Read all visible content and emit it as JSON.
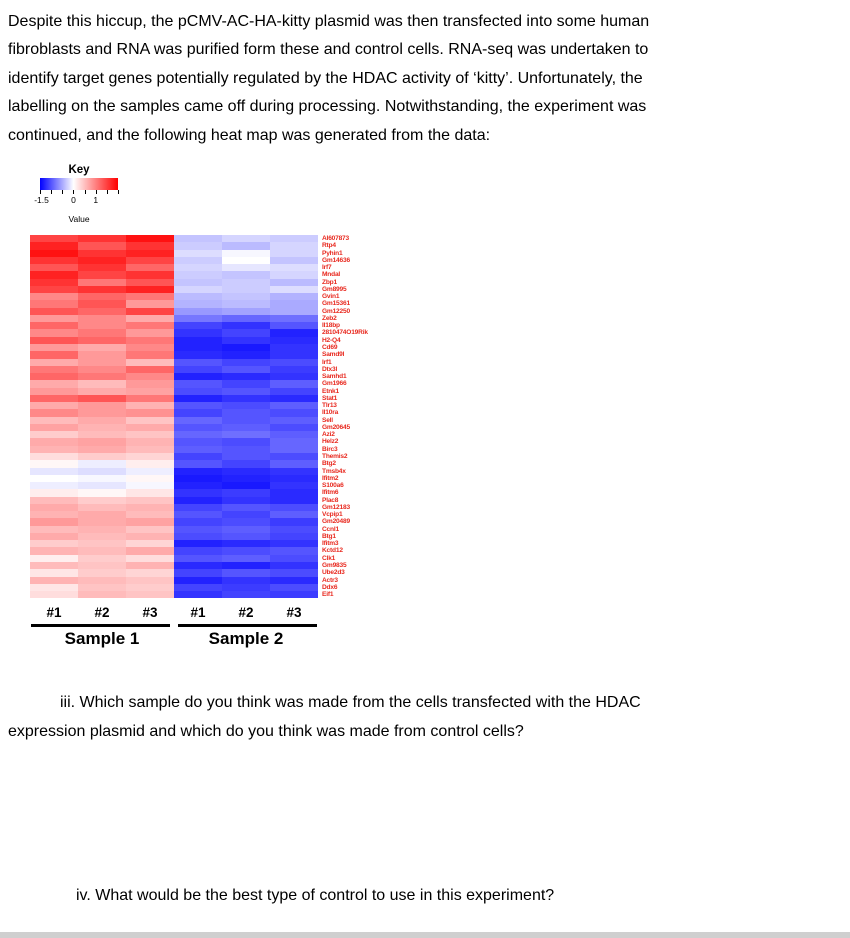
{
  "intro": {
    "lines": [
      "Despite this hiccup, the pCMV-AC-HA-kitty plasmid was then transfected into some human",
      "fibroblasts and RNA was purified form these and control cells. RNA-seq was undertaken to",
      "identify target genes potentially regulated by the HDAC activity of ‘kitty’. Unfortunately, the",
      "labelling on the samples came off during processing. Notwithstanding, the experiment was",
      "continued, and the following heat map was generated from the data:"
    ]
  },
  "key": {
    "title": "Key",
    "tick_labels": [
      "-1.5",
      "0",
      "1"
    ],
    "axis_label": "Value"
  },
  "chart_data": {
    "type": "heatmap",
    "title": "",
    "columns": [
      "Sample 1 #1",
      "Sample 1 #2",
      "Sample 1 #3",
      "Sample 2 #1",
      "Sample 2 #2",
      "Sample 2 #3"
    ],
    "genes": [
      "AI607873",
      "Rtp4",
      "Pyhin1",
      "Gm14636",
      "Irf7",
      "Mndal",
      "Zbp1",
      "Gm8995",
      "Gvin1",
      "Gm15361",
      "Gm12250",
      "Zeb2",
      "Il18bp",
      "2810474O19Rik",
      "H2-Q4",
      "Cd69",
      "Samd9l",
      "Irf1",
      "Dtx3l",
      "Samhd1",
      "Gm1966",
      "Etnk1",
      "Stat1",
      "Tlr13",
      "Il10ra",
      "Sell",
      "Gm20645",
      "Azi2",
      "Helz2",
      "Birc3",
      "Themis2",
      "Btg2",
      "Tmsb4x",
      "Ifitm2",
      "S100a6",
      "Ifitm6",
      "Plac8",
      "Gm12183",
      "Vcpip1",
      "Gm20489",
      "Ccnl1",
      "Btg1",
      "Ifitm3",
      "Kctd12",
      "Clk1",
      "Gm9835",
      "Ube2d3",
      "Actr3",
      "Ddx6",
      "Eif1"
    ],
    "values": [
      [
        1.1,
        1.2,
        1.4,
        -0.35,
        -0.25,
        -0.3
      ],
      [
        1.3,
        1.0,
        1.2,
        -0.3,
        -0.4,
        -0.25
      ],
      [
        1.4,
        1.2,
        1.3,
        -0.2,
        -0.05,
        -0.25
      ],
      [
        1.2,
        1.3,
        1.1,
        -0.3,
        0.0,
        -0.35
      ],
      [
        1.0,
        1.2,
        0.9,
        -0.25,
        -0.15,
        -0.2
      ],
      [
        1.3,
        1.1,
        1.2,
        -0.3,
        -0.35,
        -0.25
      ],
      [
        1.2,
        0.8,
        1.0,
        -0.35,
        -0.3,
        -0.4
      ],
      [
        1.1,
        1.2,
        1.3,
        -0.25,
        -0.3,
        -0.2
      ],
      [
        0.7,
        0.9,
        0.8,
        -0.4,
        -0.35,
        -0.45
      ],
      [
        0.8,
        1.0,
        0.6,
        -0.45,
        -0.4,
        -0.5
      ],
      [
        1.0,
        0.9,
        1.1,
        -0.6,
        -0.55,
        -0.5
      ],
      [
        0.6,
        0.7,
        0.5,
        -0.8,
        -0.9,
        -0.85
      ],
      [
        0.9,
        0.7,
        0.8,
        -1.1,
        -1.2,
        -1.0
      ],
      [
        0.7,
        0.8,
        0.6,
        -1.2,
        -1.1,
        -1.3
      ],
      [
        1.0,
        0.9,
        0.8,
        -1.3,
        -1.2,
        -1.25
      ],
      [
        0.6,
        0.5,
        0.7,
        -1.3,
        -1.35,
        -1.2
      ],
      [
        0.9,
        0.6,
        0.8,
        -1.25,
        -1.3,
        -1.2
      ],
      [
        0.5,
        0.6,
        0.4,
        -1.0,
        -1.1,
        -1.05
      ],
      [
        0.8,
        0.7,
        0.9,
        -1.1,
        -1.0,
        -1.15
      ],
      [
        0.9,
        0.8,
        0.7,
        -1.3,
        -1.25,
        -1.2
      ],
      [
        0.5,
        0.4,
        0.6,
        -1.0,
        -1.1,
        -0.95
      ],
      [
        0.6,
        0.5,
        0.55,
        -1.05,
        -1.0,
        -1.1
      ],
      [
        0.9,
        1.0,
        0.8,
        -1.3,
        -1.2,
        -1.25
      ],
      [
        0.5,
        0.6,
        0.45,
        -1.0,
        -1.05,
        -0.95
      ],
      [
        0.7,
        0.6,
        0.65,
        -1.1,
        -1.0,
        -1.05
      ],
      [
        0.4,
        0.5,
        0.35,
        -0.9,
        -1.0,
        -0.95
      ],
      [
        0.55,
        0.45,
        0.5,
        -1.0,
        -0.95,
        -1.05
      ],
      [
        0.3,
        0.4,
        0.35,
        -0.9,
        -0.85,
        -0.95
      ],
      [
        0.5,
        0.55,
        0.45,
        -1.0,
        -1.05,
        -0.9
      ],
      [
        0.45,
        0.5,
        0.4,
        -0.95,
        -1.0,
        -0.9
      ],
      [
        0.2,
        0.3,
        0.25,
        -1.1,
        -1.0,
        -1.05
      ],
      [
        0.05,
        -0.1,
        0.1,
        -1.0,
        -1.1,
        -0.95
      ],
      [
        -0.15,
        -0.2,
        -0.1,
        -1.3,
        -1.25,
        -1.2
      ],
      [
        0.0,
        -0.05,
        0.05,
        -1.35,
        -1.3,
        -1.25
      ],
      [
        -0.1,
        -0.15,
        -0.05,
        -1.3,
        -1.35,
        -1.2
      ],
      [
        0.1,
        0.05,
        0.15,
        -1.2,
        -1.15,
        -1.25
      ],
      [
        0.4,
        0.3,
        0.35,
        -1.3,
        -1.2,
        -1.25
      ],
      [
        0.5,
        0.4,
        0.45,
        -1.1,
        -1.0,
        -1.05
      ],
      [
        0.45,
        0.5,
        0.4,
        -1.0,
        -1.1,
        -0.95
      ],
      [
        0.6,
        0.5,
        0.55,
        -1.1,
        -1.05,
        -1.15
      ],
      [
        0.4,
        0.45,
        0.35,
        -1.0,
        -0.95,
        -1.05
      ],
      [
        0.5,
        0.4,
        0.45,
        -1.05,
        -1.0,
        -1.1
      ],
      [
        0.3,
        0.35,
        0.25,
        -1.3,
        -1.25,
        -1.2
      ],
      [
        0.45,
        0.4,
        0.5,
        -1.1,
        -1.05,
        -1.0
      ],
      [
        0.1,
        0.3,
        0.2,
        -1.0,
        -0.95,
        -1.05
      ],
      [
        0.4,
        0.35,
        0.45,
        -1.25,
        -1.3,
        -1.2
      ],
      [
        0.15,
        0.3,
        0.25,
        -1.1,
        -1.0,
        -1.05
      ],
      [
        0.45,
        0.4,
        0.35,
        -1.3,
        -1.2,
        -1.25
      ],
      [
        0.15,
        0.35,
        0.3,
        -1.1,
        -1.15,
        -1.05
      ],
      [
        0.2,
        0.4,
        0.35,
        -1.2,
        -1.1,
        -1.15
      ]
    ],
    "value_range": [
      -1.5,
      1.5
    ],
    "colormap": "blue-white-red",
    "legend_title": "Key",
    "legend_axis_label": "Value"
  },
  "samples": [
    {
      "name": "Sample 1",
      "replicates": [
        "#1",
        "#2",
        "#3"
      ]
    },
    {
      "name": "Sample 2",
      "replicates": [
        "#1",
        "#2",
        "#3"
      ]
    }
  ],
  "questions": {
    "iii_line1": "iii. Which sample do you think was made from the cells transfected with the HDAC",
    "iii_line2": "expression plasmid and which do you think was made from control cells?",
    "iv": "iv. What would be the best type of control to use in this experiment?"
  },
  "colors": {
    "gene_label": "#e8291f",
    "low": "#0000ff",
    "mid": "#ffffff",
    "high": "#ff0000",
    "text": "#000000"
  }
}
